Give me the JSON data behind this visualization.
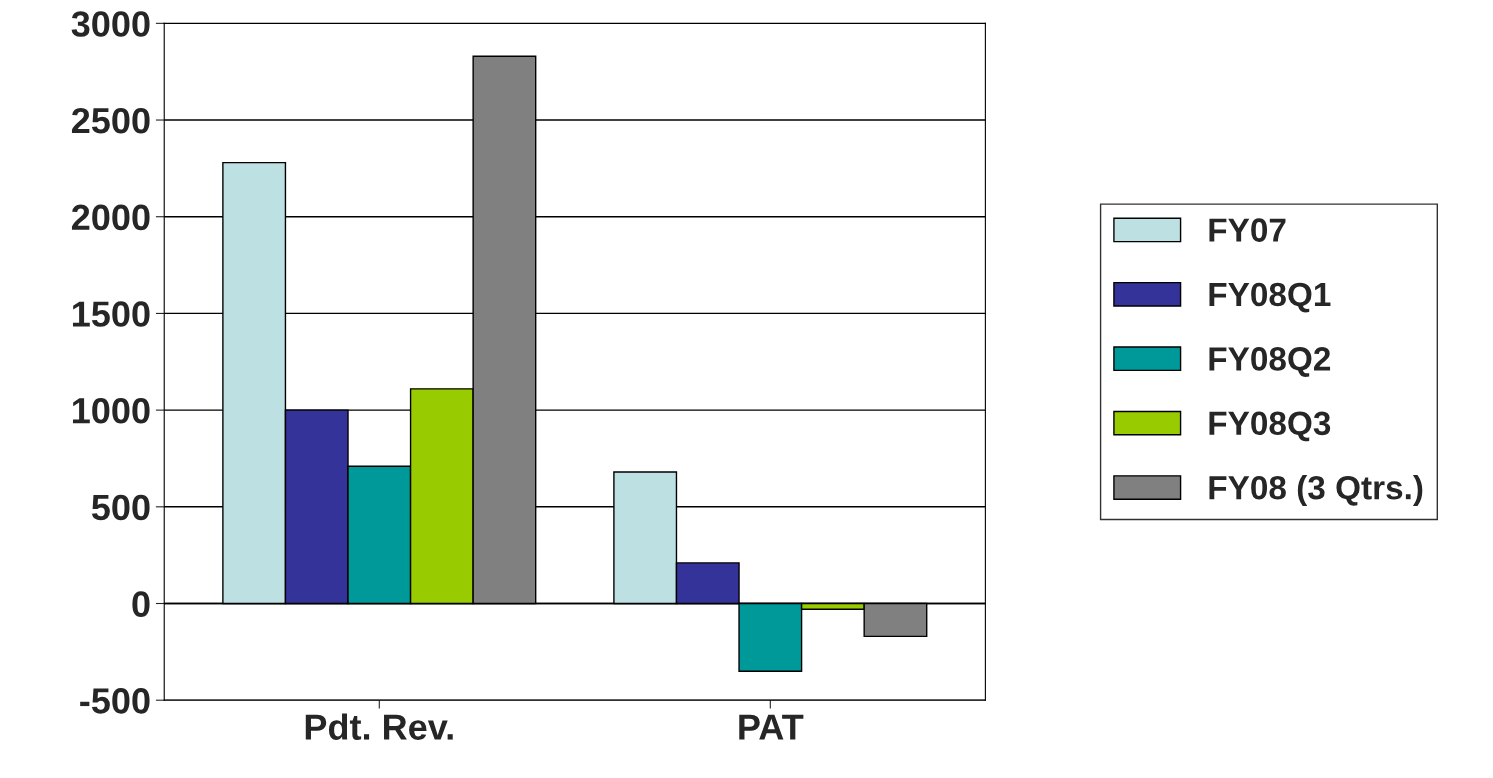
{
  "chart_data": {
    "type": "bar",
    "categories": [
      "Pdt. Rev.",
      "PAT"
    ],
    "series": [
      {
        "name": "FY07",
        "color": "#bde0e3",
        "values": [
          2280,
          680
        ]
      },
      {
        "name": "FY08Q1",
        "color": "#333399",
        "values": [
          1000,
          210
        ]
      },
      {
        "name": "FY08Q2",
        "color": "#009999",
        "values": [
          710,
          -350
        ]
      },
      {
        "name": "FY08Q3",
        "color": "#99cc00",
        "values": [
          1110,
          -30
        ]
      },
      {
        "name": "FY08 (3 Qtrs.)",
        "color": "#808080",
        "values": [
          2830,
          -170
        ]
      }
    ],
    "ylim": [
      -500,
      3000
    ],
    "yticks": [
      -500,
      0,
      500,
      1000,
      1500,
      2000,
      2500,
      3000
    ],
    "grid": "y",
    "legend": "right"
  }
}
